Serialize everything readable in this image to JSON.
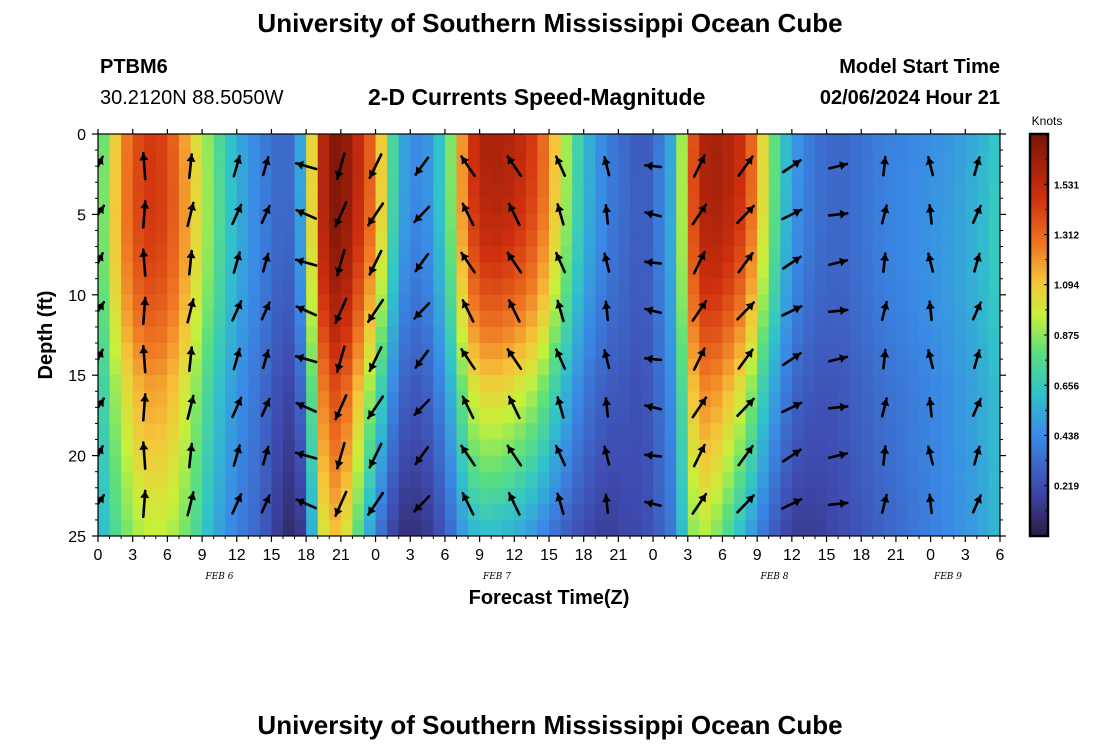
{
  "page": {
    "title_top": "University of Southern Mississippi Ocean Cube",
    "title_bottom": "University of Southern Mississippi Ocean Cube",
    "station": "PTBM6",
    "location": "30.2120N  88.5050W",
    "plot_title": "2-D Currents Speed-Magnitude",
    "model_start_label": "Model Start Time",
    "model_start_value": "02/06/2024 Hour 21"
  },
  "chart_data": {
    "type": "heatmap",
    "title": "2-D Currents Speed-Magnitude",
    "xlabel": "Forecast Time(Z)",
    "ylabel": "Depth (ft)",
    "x_range_hours": [
      0,
      78
    ],
    "ylim": [
      0,
      25
    ],
    "y_ticks": [
      0,
      5,
      10,
      15,
      20,
      25
    ],
    "x_tick_labels": [
      "0",
      "3",
      "6",
      "9",
      "12",
      "15",
      "18",
      "21",
      "0",
      "3",
      "6",
      "9",
      "12",
      "15",
      "18",
      "21",
      "0",
      "3",
      "6",
      "9",
      "12",
      "15",
      "18",
      "21",
      "0",
      "3",
      "6"
    ],
    "date_labels": [
      {
        "text": "FEB 6",
        "hour": 10.5
      },
      {
        "text": "FEB 7",
        "hour": 34.5
      },
      {
        "text": "FEB 8",
        "hour": 58.5
      },
      {
        "text": "FEB 9",
        "hour": 73.5
      }
    ],
    "colorbar": {
      "unit": "Knots",
      "min": 0.0,
      "max": 1.75,
      "tick_values": [
        1.531,
        1.312,
        1.094,
        0.875,
        0.656,
        0.438,
        0.219
      ],
      "tick_labels": [
        "1.531",
        "1.312",
        "1.094",
        "0.875",
        "0.656",
        "0.438",
        "0.219"
      ]
    },
    "speed_profile": {
      "description": "surface speed in knots vs forecast hour with depth factor",
      "hours": [
        0,
        2,
        4,
        6,
        8,
        10,
        12,
        14,
        16,
        17,
        18,
        19,
        20,
        21,
        22,
        24,
        26,
        28,
        30,
        31,
        32,
        33,
        34,
        36,
        38,
        40,
        42,
        44,
        46,
        47,
        48,
        50,
        51,
        52,
        53,
        54,
        56,
        58,
        60,
        62,
        64,
        66,
        68,
        70,
        72,
        74,
        76,
        78
      ],
      "surface_kt": [
        0.7,
        1.2,
        1.45,
        1.4,
        1.1,
        0.8,
        0.55,
        0.4,
        0.3,
        0.35,
        0.7,
        1.4,
        1.7,
        1.72,
        1.6,
        1.25,
        0.55,
        0.4,
        0.7,
        1.0,
        1.4,
        1.55,
        1.6,
        1.55,
        1.4,
        1.0,
        0.6,
        0.4,
        0.3,
        0.25,
        0.3,
        0.6,
        1.2,
        1.55,
        1.6,
        1.6,
        1.45,
        0.9,
        0.5,
        0.35,
        0.3,
        0.35,
        0.4,
        0.42,
        0.45,
        0.48,
        0.55,
        0.65
      ],
      "bottom_kt": [
        0.55,
        0.8,
        0.95,
        0.95,
        0.8,
        0.55,
        0.4,
        0.3,
        0.1,
        0.05,
        0.2,
        0.9,
        1.1,
        1.1,
        0.9,
        0.4,
        0.1,
        0.1,
        0.25,
        0.4,
        0.55,
        0.6,
        0.6,
        0.55,
        0.45,
        0.3,
        0.2,
        0.15,
        0.2,
        0.2,
        0.25,
        0.4,
        0.8,
        0.95,
        0.9,
        0.8,
        0.55,
        0.3,
        0.15,
        0.15,
        0.2,
        0.25,
        0.3,
        0.35,
        0.4,
        0.45,
        0.5,
        0.6
      ]
    },
    "vectors": {
      "description": "current direction (degrees, 0 = north/up, clockwise) at sampled hours; each column drawn at depths 2,5,8,11,14,17,20,23 ft",
      "hours": [
        0,
        4,
        8,
        12,
        14.5,
        18,
        21,
        24,
        28,
        32,
        36,
        40,
        44,
        48,
        52,
        56,
        60,
        64,
        68,
        72,
        76
      ],
      "direction": [
        30,
        0,
        10,
        20,
        20,
        290,
        200,
        210,
        220,
        330,
        330,
        340,
        350,
        280,
        30,
        40,
        60,
        80,
        10,
        350,
        20
      ],
      "magnitude": [
        0.8,
        1.0,
        0.9,
        0.8,
        0.7,
        0.8,
        1.0,
        1.0,
        0.8,
        0.9,
        0.9,
        0.8,
        0.7,
        0.6,
        0.9,
        0.9,
        0.8,
        0.7,
        0.7,
        0.7,
        0.7
      ]
    }
  }
}
